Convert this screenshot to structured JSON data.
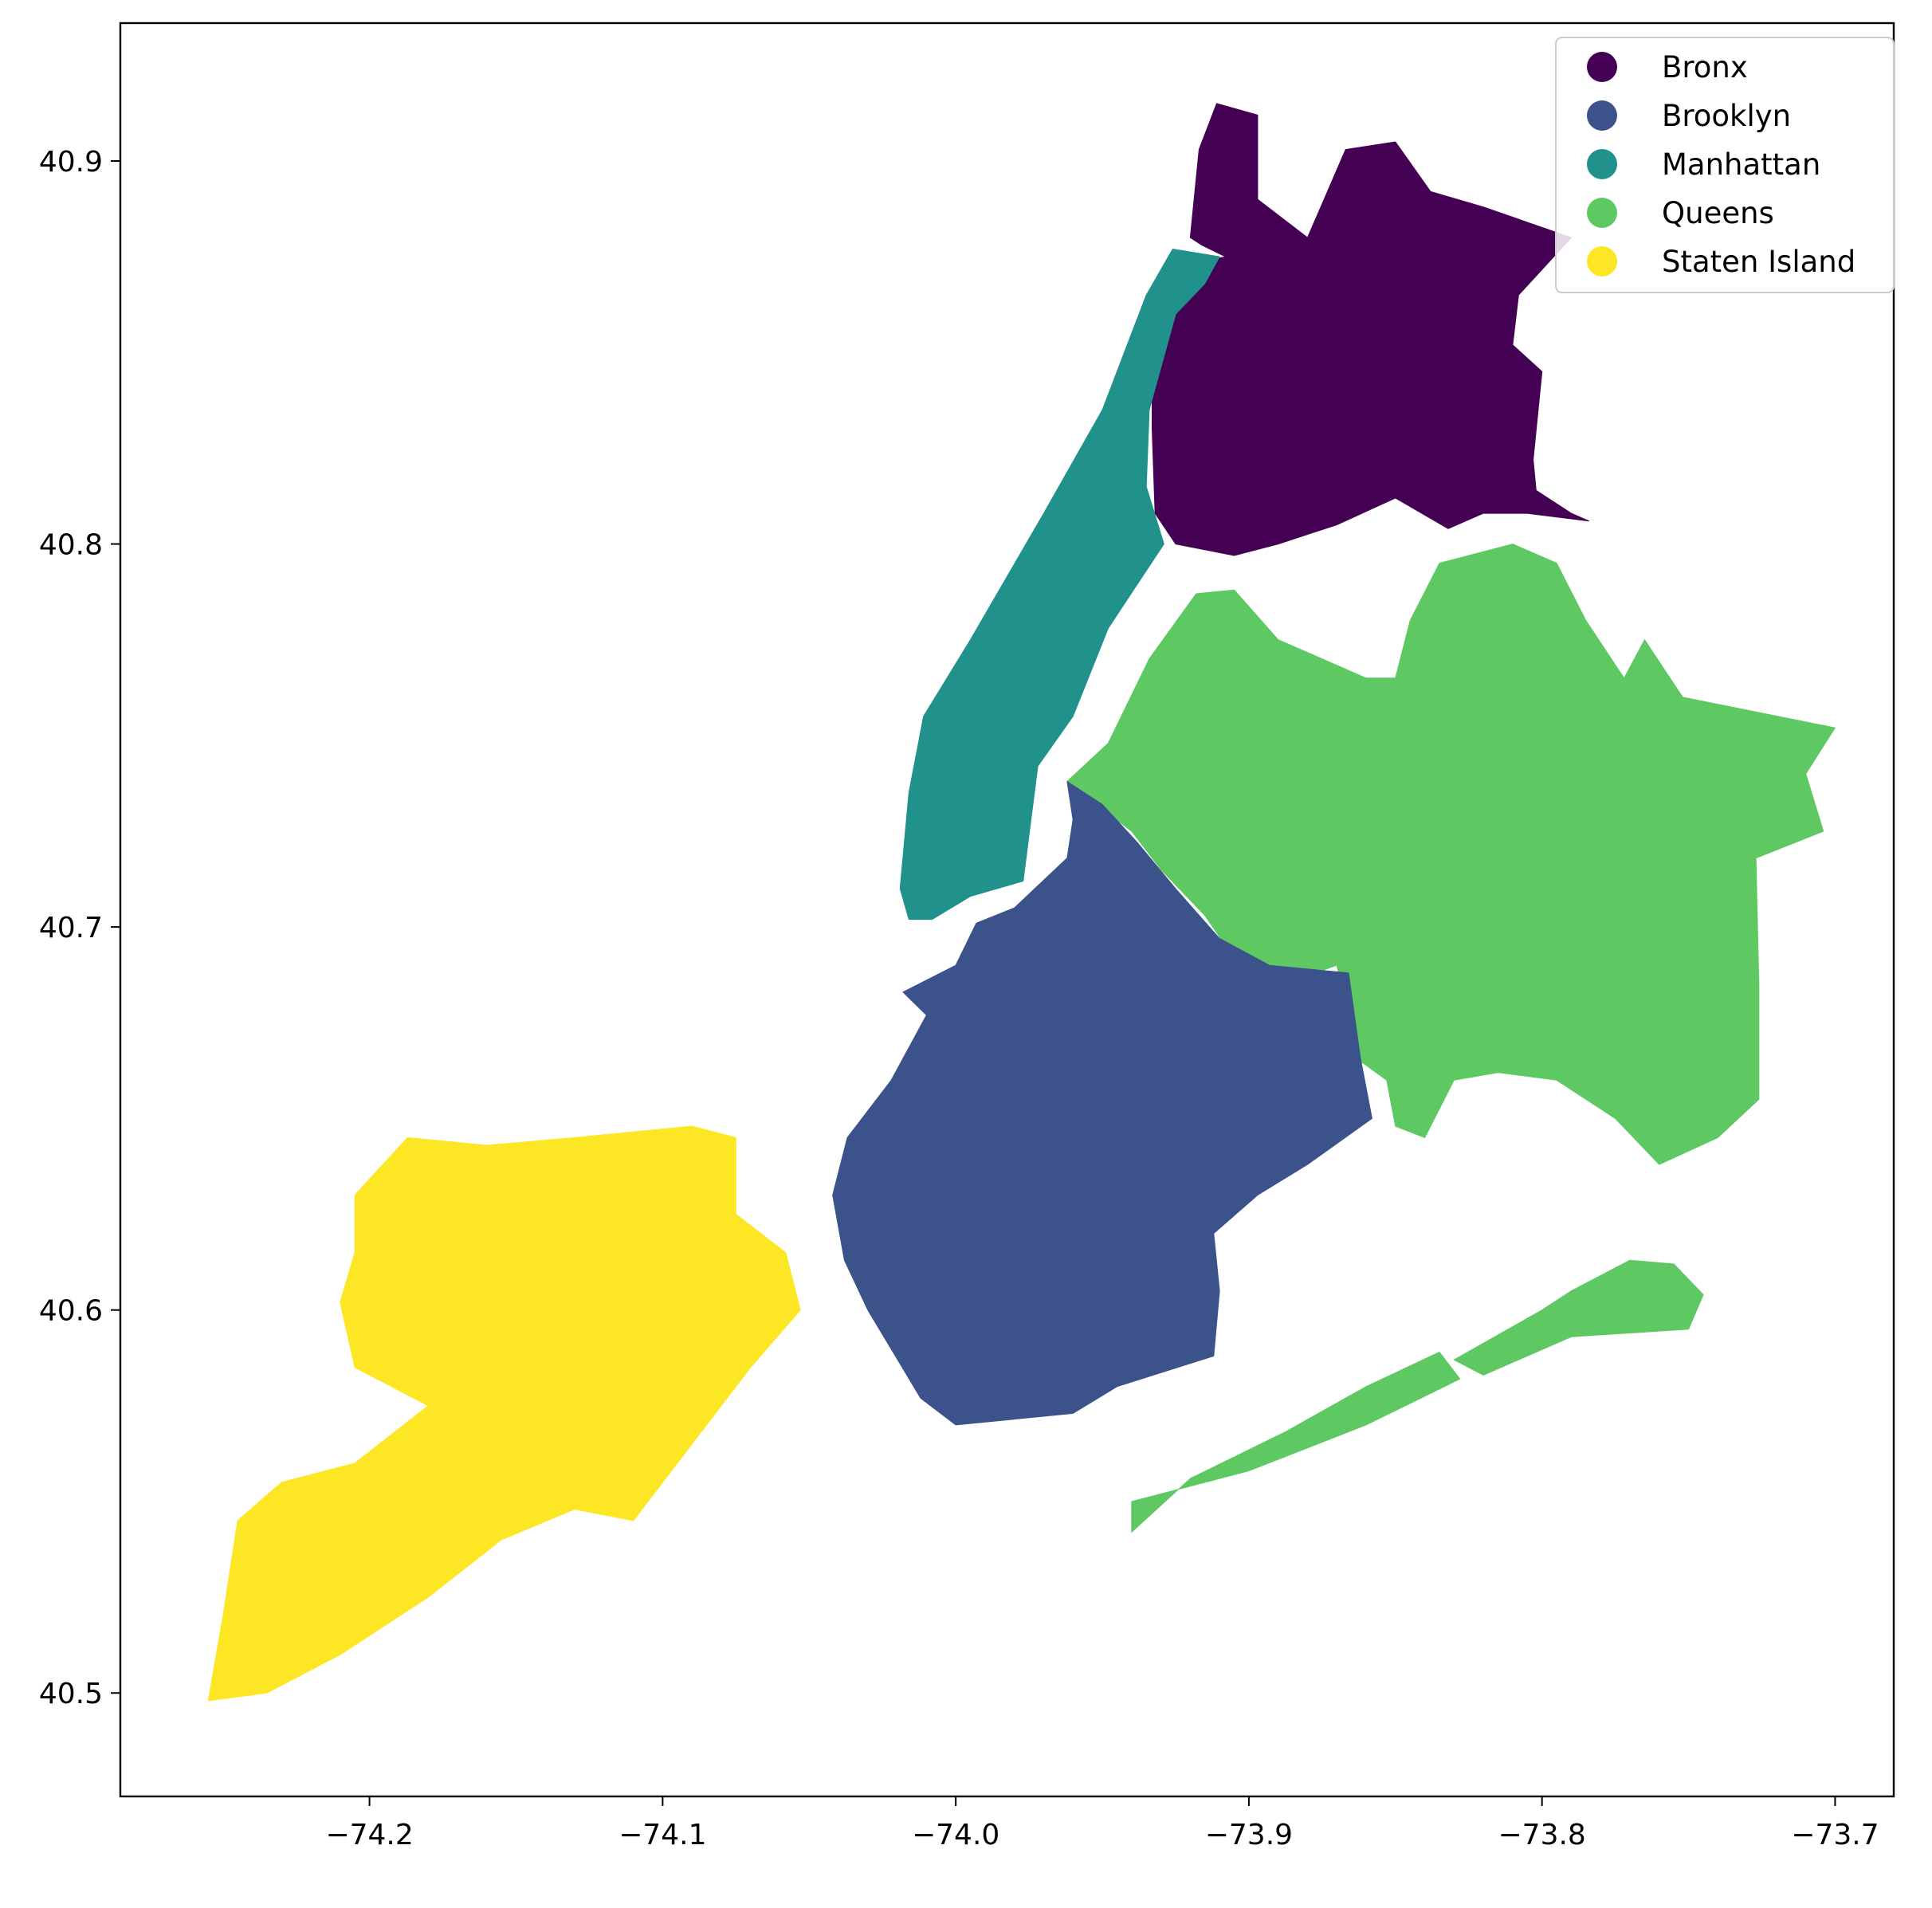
{
  "map": {
    "projection": "lon/lat (plate carree)",
    "extent": {
      "lon": [
        -74.285,
        -73.68
      ],
      "lat": [
        40.473,
        40.936
      ]
    },
    "xticks": [
      {
        "value": -74.2,
        "label": "−74.2"
      },
      {
        "value": -74.1,
        "label": "−74.1"
      },
      {
        "value": -74.0,
        "label": "−74.0"
      },
      {
        "value": -73.9,
        "label": "−73.9"
      },
      {
        "value": -73.8,
        "label": "−73.8"
      },
      {
        "value": -73.7,
        "label": "−73.7"
      }
    ],
    "yticks": [
      {
        "value": 40.5,
        "label": "40.5"
      },
      {
        "value": 40.6,
        "label": "40.6"
      },
      {
        "value": 40.7,
        "label": "40.7"
      },
      {
        "value": 40.8,
        "label": "40.8"
      },
      {
        "value": 40.9,
        "label": "40.9"
      }
    ],
    "legend": {
      "position": "upper right",
      "entries": [
        {
          "name": "Bronx",
          "color": "#440154"
        },
        {
          "name": "Brooklyn",
          "color": "#3b528b"
        },
        {
          "name": "Manhattan",
          "color": "#21918c"
        },
        {
          "name": "Queens",
          "color": "#5ec962"
        },
        {
          "name": "Staten Island",
          "color": "#fde725"
        }
      ]
    }
  },
  "boroughs": [
    {
      "name": "Bronx",
      "color": "#440154",
      "polygons": [
        [
          [
            -73.911,
            40.915
          ],
          [
            -73.897,
            40.912
          ],
          [
            -73.897,
            40.89
          ],
          [
            -73.88,
            40.88
          ],
          [
            -73.867,
            40.903
          ],
          [
            -73.85,
            40.905
          ],
          [
            -73.838,
            40.892
          ],
          [
            -73.82,
            40.888
          ],
          [
            -73.79,
            40.88
          ],
          [
            -73.808,
            40.865
          ],
          [
            -73.81,
            40.852
          ],
          [
            -73.8,
            40.845
          ],
          [
            -73.803,
            40.822
          ],
          [
            -73.802,
            40.814
          ],
          [
            -73.79,
            40.808
          ],
          [
            -73.784,
            40.806
          ],
          [
            -73.805,
            40.808
          ],
          [
            -73.82,
            40.808
          ],
          [
            -73.832,
            40.804
          ],
          [
            -73.85,
            40.812
          ],
          [
            -73.87,
            40.805
          ],
          [
            -73.89,
            40.8
          ],
          [
            -73.905,
            40.797
          ],
          [
            -73.925,
            40.8
          ],
          [
            -73.932,
            40.808
          ],
          [
            -73.933,
            40.83
          ],
          [
            -73.933,
            40.848
          ],
          [
            -73.92,
            40.873
          ],
          [
            -73.908,
            40.875
          ],
          [
            -73.916,
            40.878
          ],
          [
            -73.92,
            40.88
          ],
          [
            -73.917,
            40.903
          ]
        ]
      ]
    },
    {
      "name": "Manhattan",
      "color": "#21918c",
      "polygons": [
        [
          [
            -73.926,
            40.877
          ],
          [
            -73.91,
            40.875
          ],
          [
            -73.915,
            40.868
          ],
          [
            -73.925,
            40.86
          ],
          [
            -73.934,
            40.835
          ],
          [
            -73.935,
            40.815
          ],
          [
            -73.929,
            40.8
          ],
          [
            -73.948,
            40.778
          ],
          [
            -73.96,
            40.755
          ],
          [
            -73.972,
            40.742
          ],
          [
            -73.977,
            40.712
          ],
          [
            -73.995,
            40.708
          ],
          [
            -74.008,
            40.702
          ],
          [
            -74.016,
            40.702
          ],
          [
            -74.019,
            40.71
          ],
          [
            -74.016,
            40.735
          ],
          [
            -74.011,
            40.755
          ],
          [
            -73.995,
            40.775
          ],
          [
            -73.97,
            40.808
          ],
          [
            -73.95,
            40.835
          ],
          [
            -73.935,
            40.865
          ]
        ]
      ]
    },
    {
      "name": "Queens",
      "color": "#5ec962",
      "polygons": [
        [
          [
            -73.962,
            40.738
          ],
          [
            -73.948,
            40.748
          ],
          [
            -73.934,
            40.77
          ],
          [
            -73.918,
            40.787
          ],
          [
            -73.905,
            40.788
          ],
          [
            -73.89,
            40.775
          ],
          [
            -73.875,
            40.77
          ],
          [
            -73.86,
            40.765
          ],
          [
            -73.85,
            40.765
          ],
          [
            -73.845,
            40.78
          ],
          [
            -73.835,
            40.795
          ],
          [
            -73.81,
            40.8
          ],
          [
            -73.795,
            40.795
          ],
          [
            -73.785,
            40.78
          ],
          [
            -73.772,
            40.765
          ],
          [
            -73.765,
            40.775
          ],
          [
            -73.752,
            40.76
          ],
          [
            -73.7,
            40.752
          ],
          [
            -73.71,
            40.74
          ],
          [
            -73.704,
            40.725
          ],
          [
            -73.727,
            40.718
          ],
          [
            -73.726,
            40.685
          ],
          [
            -73.726,
            40.655
          ],
          [
            -73.74,
            40.645
          ],
          [
            -73.76,
            40.638
          ],
          [
            -73.775,
            40.65
          ],
          [
            -73.795,
            40.66
          ],
          [
            -73.815,
            40.662
          ],
          [
            -73.83,
            40.66
          ],
          [
            -73.84,
            40.645
          ],
          [
            -73.85,
            40.648
          ],
          [
            -73.853,
            40.66
          ],
          [
            -73.862,
            40.665
          ],
          [
            -73.87,
            40.69
          ],
          [
            -73.896,
            40.683
          ],
          [
            -73.906,
            40.693
          ],
          [
            -73.915,
            40.703
          ],
          [
            -73.93,
            40.715
          ],
          [
            -73.94,
            40.725
          ]
        ],
        [
          [
            -73.94,
            40.542
          ],
          [
            -73.92,
            40.556
          ],
          [
            -73.888,
            40.568
          ],
          [
            -73.86,
            40.58
          ],
          [
            -73.835,
            40.589
          ],
          [
            -73.828,
            40.582
          ],
          [
            -73.86,
            40.57
          ],
          [
            -73.9,
            40.558
          ],
          [
            -73.94,
            40.55
          ]
        ],
        [
          [
            -73.83,
            40.587
          ],
          [
            -73.8,
            40.6
          ],
          [
            -73.79,
            40.605
          ],
          [
            -73.77,
            40.613
          ],
          [
            -73.755,
            40.612
          ],
          [
            -73.745,
            40.604
          ],
          [
            -73.75,
            40.595
          ],
          [
            -73.79,
            40.593
          ],
          [
            -73.82,
            40.583
          ]
        ]
      ]
    },
    {
      "name": "Brooklyn",
      "color": "#3b528b",
      "polygons": [
        [
          [
            -73.962,
            40.738
          ],
          [
            -73.95,
            40.732
          ],
          [
            -73.938,
            40.722
          ],
          [
            -73.925,
            40.71
          ],
          [
            -73.91,
            40.697
          ],
          [
            -73.893,
            40.69
          ],
          [
            -73.866,
            40.688
          ],
          [
            -73.862,
            40.666
          ],
          [
            -73.858,
            40.65
          ],
          [
            -73.88,
            40.638
          ],
          [
            -73.897,
            40.63
          ],
          [
            -73.912,
            40.62
          ],
          [
            -73.91,
            40.605
          ],
          [
            -73.912,
            40.588
          ],
          [
            -73.945,
            40.58
          ],
          [
            -73.96,
            40.573
          ],
          [
            -74.0,
            40.57
          ],
          [
            -74.012,
            40.577
          ],
          [
            -74.03,
            40.6
          ],
          [
            -74.038,
            40.613
          ],
          [
            -74.042,
            40.63
          ],
          [
            -74.037,
            40.645
          ],
          [
            -74.022,
            40.66
          ],
          [
            -74.01,
            40.677
          ],
          [
            -74.018,
            40.683
          ],
          [
            -74.0,
            40.69
          ],
          [
            -73.993,
            40.701
          ],
          [
            -73.98,
            40.705
          ],
          [
            -73.962,
            40.718
          ],
          [
            -73.96,
            40.728
          ]
        ]
      ]
    },
    {
      "name": "Staten Island",
      "color": "#fde725",
      "polygons": [
        [
          [
            -74.187,
            40.645
          ],
          [
            -74.16,
            40.643
          ],
          [
            -74.13,
            40.645
          ],
          [
            -74.09,
            40.648
          ],
          [
            -74.075,
            40.645
          ],
          [
            -74.075,
            40.625
          ],
          [
            -74.058,
            40.615
          ],
          [
            -74.053,
            40.6
          ],
          [
            -74.07,
            40.585
          ],
          [
            -74.09,
            40.565
          ],
          [
            -74.11,
            40.545
          ],
          [
            -74.13,
            40.548
          ],
          [
            -74.155,
            40.54
          ],
          [
            -74.18,
            40.525
          ],
          [
            -74.21,
            40.51
          ],
          [
            -74.235,
            40.5
          ],
          [
            -74.255,
            40.498
          ],
          [
            -74.25,
            40.52
          ],
          [
            -74.245,
            40.545
          ],
          [
            -74.23,
            40.555
          ],
          [
            -74.205,
            40.56
          ],
          [
            -74.18,
            40.575
          ],
          [
            -74.205,
            40.585
          ],
          [
            -74.21,
            40.602
          ],
          [
            -74.205,
            40.615
          ],
          [
            -74.205,
            40.63
          ]
        ]
      ]
    }
  ]
}
